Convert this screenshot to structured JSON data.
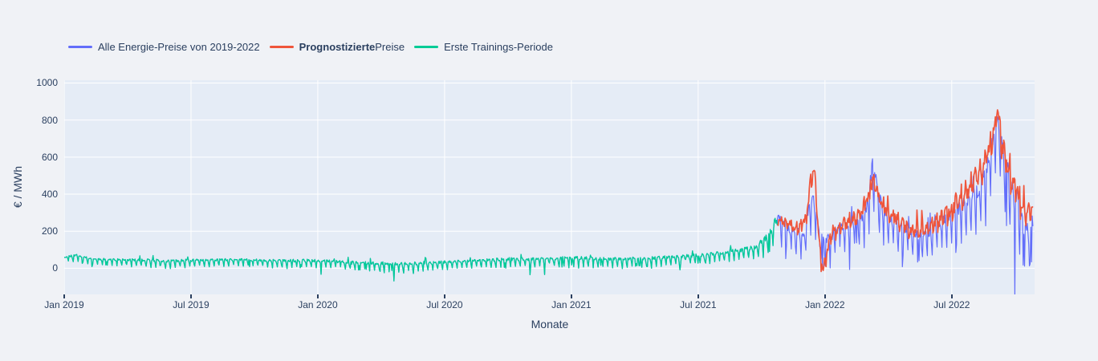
{
  "figure": {
    "background_color": "#f0f2f6",
    "plot_background_color": "#e5ecf6",
    "grid_color": "#ffffff",
    "font_color": "#2a3f5f"
  },
  "legend": {
    "items": [
      {
        "bold": "",
        "text": "Alle Energie-Preise von 2019-2022",
        "color": "#636efa"
      },
      {
        "bold": "Prognostizierte",
        "text": " Preise",
        "color": "#ef553b"
      },
      {
        "bold": "",
        "text": "Erste Trainings-Periode",
        "color": "#00cc96"
      }
    ]
  },
  "chart_data": {
    "type": "line",
    "title": "",
    "xlabel": "Monate",
    "ylabel": "€ / MWh",
    "ylim": [
      -141,
      1015
    ],
    "xlim_months": [
      0,
      45.92
    ],
    "grid": true,
    "legend_position": "top-left",
    "y_ticks": [
      0,
      200,
      400,
      600,
      800,
      1000
    ],
    "x_tick_months": [
      0,
      6,
      12,
      18,
      24,
      30,
      36,
      42
    ],
    "x_tick_labels": [
      "Jan 2019",
      "Jul 2019",
      "Jan 2020",
      "Jul 2020",
      "Jan 2021",
      "Jul 2021",
      "Jan 2022",
      "Jul 2022"
    ],
    "series": [
      {
        "name": "Alle Energie-Preise von 2019-2022",
        "color": "#636efa",
        "line_width": 1.2,
        "segments": [
          "training",
          "actual"
        ]
      },
      {
        "name": "Prognostizierte Preise",
        "color": "#ef553b",
        "line_width": 1.7,
        "segments": [
          "forecast"
        ]
      },
      {
        "name": "Erste Trainings-Periode",
        "color": "#00cc96",
        "line_width": 1.3,
        "segments": [
          "training"
        ]
      }
    ],
    "segments": {
      "training": {
        "range_months": [
          0,
          33.75
        ],
        "seed": 11,
        "weekly_pattern": "weekend-dip",
        "anchors_month_value_noise": [
          [
            0,
            62,
            10
          ],
          [
            0.6,
            72,
            12
          ],
          [
            1.2,
            52,
            10
          ],
          [
            2,
            48,
            10
          ],
          [
            3,
            46,
            12
          ],
          [
            4,
            44,
            14
          ],
          [
            4.7,
            40,
            16
          ],
          [
            5.5,
            42,
            14
          ],
          [
            6.5,
            44,
            12
          ],
          [
            7.5,
            46,
            12
          ],
          [
            8.5,
            47,
            12
          ],
          [
            9.5,
            44,
            13
          ],
          [
            10.5,
            40,
            14
          ],
          [
            11.2,
            42,
            15
          ],
          [
            12,
            42,
            13
          ],
          [
            13,
            36,
            13
          ],
          [
            14,
            30,
            15
          ],
          [
            15,
            27,
            16
          ],
          [
            15.8,
            24,
            18
          ],
          [
            16.5,
            27,
            18
          ],
          [
            17.2,
            30,
            17
          ],
          [
            18,
            34,
            14
          ],
          [
            19,
            39,
            13
          ],
          [
            20,
            44,
            15
          ],
          [
            20.7,
            50,
            18
          ],
          [
            21.5,
            49,
            16
          ],
          [
            22.5,
            50,
            15
          ],
          [
            23.5,
            54,
            17
          ],
          [
            24.3,
            56,
            18
          ],
          [
            25,
            52,
            16
          ],
          [
            26,
            50,
            17
          ],
          [
            27,
            52,
            18
          ],
          [
            28,
            56,
            18
          ],
          [
            29,
            62,
            17
          ],
          [
            30,
            70,
            17
          ],
          [
            31,
            82,
            18
          ],
          [
            32,
            98,
            20
          ],
          [
            32.7,
            118,
            24
          ],
          [
            33.1,
            150,
            30
          ],
          [
            33.4,
            195,
            35
          ],
          [
            33.6,
            240,
            40
          ],
          [
            33.75,
            280,
            45
          ]
        ]
      },
      "actual": {
        "range_months": [
          33.75,
          45.85
        ],
        "seed": 29,
        "weekly_pattern": "weekend-dip",
        "anchors_month_value_noise": [
          [
            33.75,
            280,
            45
          ],
          [
            34.1,
            230,
            45
          ],
          [
            34.6,
            195,
            50
          ],
          [
            35.0,
            185,
            55
          ],
          [
            35.25,
            330,
            60
          ],
          [
            35.45,
            390,
            55
          ],
          [
            35.65,
            250,
            65
          ],
          [
            35.9,
            160,
            60
          ],
          [
            36.2,
            160,
            55
          ],
          [
            36.6,
            215,
            45
          ],
          [
            37.1,
            235,
            45
          ],
          [
            37.6,
            255,
            50
          ],
          [
            38.0,
            330,
            70
          ],
          [
            38.25,
            560,
            90
          ],
          [
            38.45,
            470,
            80
          ],
          [
            38.7,
            330,
            65
          ],
          [
            39.1,
            270,
            55
          ],
          [
            39.5,
            230,
            50
          ],
          [
            40.0,
            205,
            50
          ],
          [
            40.4,
            180,
            55
          ],
          [
            40.9,
            195,
            50
          ],
          [
            41.4,
            240,
            55
          ],
          [
            41.9,
            290,
            60
          ],
          [
            42.4,
            330,
            70
          ],
          [
            42.9,
            380,
            80
          ],
          [
            43.3,
            430,
            90
          ],
          [
            43.7,
            560,
            100
          ],
          [
            44.0,
            720,
            90
          ],
          [
            44.2,
            800,
            80
          ],
          [
            44.45,
            620,
            100
          ],
          [
            44.75,
            480,
            110
          ],
          [
            45.05,
            400,
            100
          ],
          [
            45.35,
            280,
            95
          ],
          [
            45.6,
            220,
            85
          ],
          [
            45.85,
            260,
            70
          ]
        ]
      },
      "forecast": {
        "range_months": [
          33.75,
          45.85
        ],
        "seed": 47,
        "weekly_pattern": "weekly-saw",
        "anchors_month_value_noise": [
          [
            33.75,
            265,
            35
          ],
          [
            34.2,
            240,
            45
          ],
          [
            34.7,
            205,
            50
          ],
          [
            35.1,
            260,
            60
          ],
          [
            35.35,
            480,
            70
          ],
          [
            35.5,
            540,
            50
          ],
          [
            35.68,
            240,
            90
          ],
          [
            35.85,
            -20,
            55
          ],
          [
            36.05,
            60,
            60
          ],
          [
            36.3,
            175,
            55
          ],
          [
            36.7,
            225,
            50
          ],
          [
            37.2,
            250,
            55
          ],
          [
            37.7,
            290,
            60
          ],
          [
            38.05,
            380,
            70
          ],
          [
            38.3,
            470,
            55
          ],
          [
            38.6,
            360,
            65
          ],
          [
            39.0,
            290,
            60
          ],
          [
            39.5,
            245,
            55
          ],
          [
            40.0,
            210,
            55
          ],
          [
            40.5,
            200,
            55
          ],
          [
            41.0,
            225,
            55
          ],
          [
            41.5,
            270,
            60
          ],
          [
            42.0,
            320,
            70
          ],
          [
            42.5,
            385,
            80
          ],
          [
            43.0,
            450,
            90
          ],
          [
            43.5,
            540,
            100
          ],
          [
            43.9,
            700,
            100
          ],
          [
            44.15,
            860,
            70
          ],
          [
            44.4,
            640,
            110
          ],
          [
            44.7,
            540,
            110
          ],
          [
            45.0,
            450,
            100
          ],
          [
            45.3,
            330,
            95
          ],
          [
            45.55,
            270,
            85
          ],
          [
            45.85,
            350,
            60
          ]
        ]
      }
    }
  }
}
